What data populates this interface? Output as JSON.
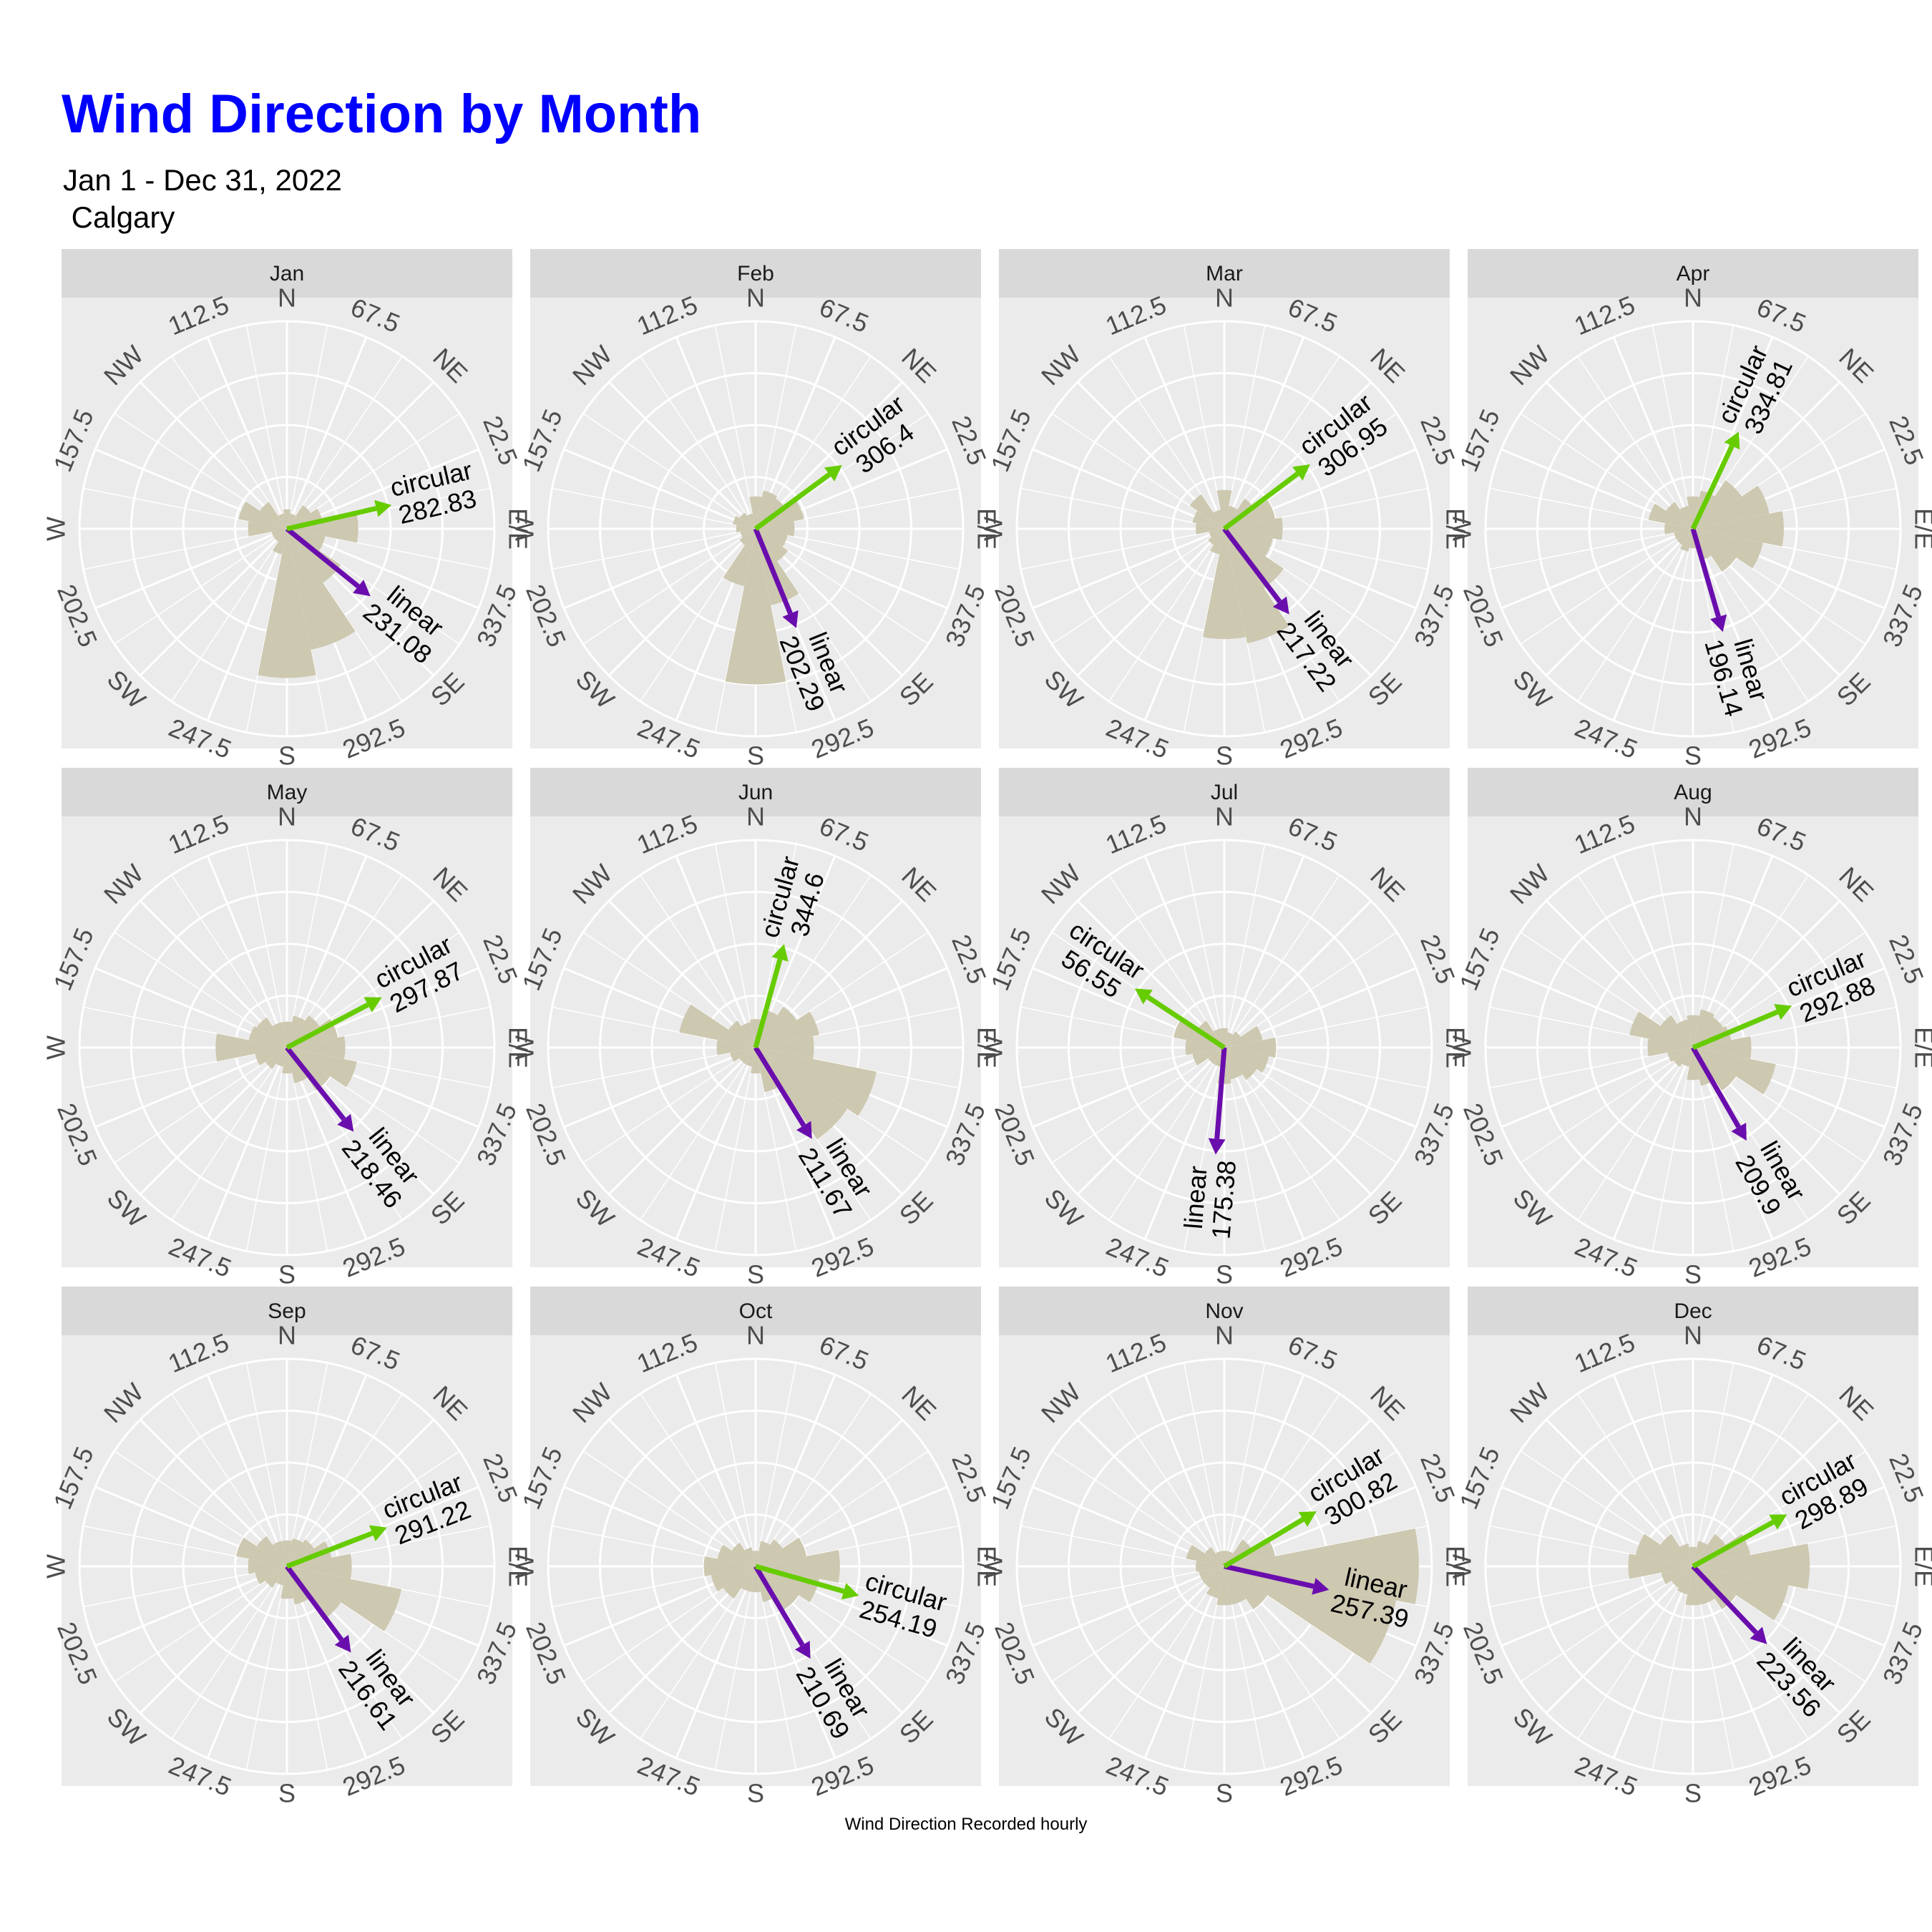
{
  "title": "Wind Direction by Month",
  "subtitle": "Jan 1 - Dec 31, 2022\n Calgary",
  "caption": "Wind Direction Recorded hourly",
  "colors": {
    "bars": "#cdc8b0",
    "linear": "#6a0dad",
    "circular": "#66cc00",
    "title": "#0000ff",
    "panel_bg": "#ebebeb",
    "strip_bg": "#d9d9d9",
    "grid": "#ffffff"
  },
  "chart_data": {
    "type": "polar-bar",
    "direction_labels": [
      "N",
      "67.5",
      "NE",
      "22.5",
      "E/E",
      "337.5",
      "SE",
      "292.5",
      "S",
      "247.5",
      "SW",
      "202.5",
      "W",
      "157.5",
      "NW",
      "112.5"
    ],
    "arrow_labels": {
      "linear": "linear",
      "circular": "circular"
    },
    "panels": [
      {
        "month": "Jan",
        "linear": "231.08",
        "circular": "282.83",
        "bars": [
          0.15,
          0.12,
          0.22,
          0.28,
          0.55,
          0.3,
          0.5,
          0.95,
          1.15,
          0.2,
          0.12,
          0.12,
          0.3,
          0.38,
          0.25,
          0.12
        ]
      },
      {
        "month": "Feb",
        "linear": "202.29",
        "circular": "306.4",
        "bars": [
          0.25,
          0.3,
          0.28,
          0.38,
          0.3,
          0.25,
          0.3,
          0.6,
          1.2,
          0.45,
          0.15,
          0.12,
          0.15,
          0.18,
          0.15,
          0.12
        ]
      },
      {
        "month": "Mar",
        "linear": "217.22",
        "circular": "306.95",
        "bars": [
          0.3,
          0.18,
          0.28,
          0.4,
          0.45,
          0.38,
          0.55,
          0.9,
          0.85,
          0.2,
          0.15,
          0.12,
          0.22,
          0.25,
          0.32,
          0.15
        ]
      },
      {
        "month": "Apr",
        "linear": "196.14",
        "circular": "334.81",
        "bars": [
          0.25,
          0.3,
          0.45,
          0.6,
          0.7,
          0.55,
          0.4,
          0.25,
          0.15,
          0.18,
          0.15,
          0.15,
          0.22,
          0.35,
          0.25,
          0.18
        ]
      },
      {
        "month": "May",
        "linear": "218.46",
        "circular": "297.87",
        "bars": [
          0.2,
          0.25,
          0.3,
          0.4,
          0.45,
          0.55,
          0.4,
          0.28,
          0.2,
          0.15,
          0.2,
          0.25,
          0.55,
          0.3,
          0.28,
          0.2
        ]
      },
      {
        "month": "Jun",
        "linear": "211.67",
        "circular": "344.6",
        "bars": [
          0.22,
          0.3,
          0.38,
          0.5,
          0.45,
          0.95,
          0.85,
          0.35,
          0.2,
          0.15,
          0.15,
          0.2,
          0.3,
          0.6,
          0.25,
          0.2
        ]
      },
      {
        "month": "Jul",
        "linear": "175.38",
        "circular": "56.55",
        "bars": [
          0.15,
          0.12,
          0.15,
          0.3,
          0.4,
          0.35,
          0.3,
          0.25,
          0.28,
          0.15,
          0.15,
          0.25,
          0.3,
          0.4,
          0.25,
          0.15
        ]
      },
      {
        "month": "Aug",
        "linear": "209.9",
        "circular": "292.88",
        "bars": [
          0.25,
          0.3,
          0.28,
          0.3,
          0.45,
          0.65,
          0.4,
          0.3,
          0.25,
          0.15,
          0.18,
          0.2,
          0.35,
          0.5,
          0.3,
          0.22
        ]
      },
      {
        "month": "Sep",
        "linear": "216.61",
        "circular": "291.22",
        "bars": [
          0.2,
          0.22,
          0.25,
          0.35,
          0.5,
          0.9,
          0.5,
          0.3,
          0.25,
          0.15,
          0.2,
          0.25,
          0.3,
          0.4,
          0.28,
          0.2
        ]
      },
      {
        "month": "Oct",
        "linear": "210.69",
        "circular": "254.19",
        "bars": [
          0.12,
          0.2,
          0.25,
          0.4,
          0.65,
          0.5,
          0.4,
          0.28,
          0.2,
          0.2,
          0.3,
          0.35,
          0.4,
          0.3,
          0.22,
          0.15
        ]
      },
      {
        "month": "Nov",
        "linear": "257.39",
        "circular": "300.82",
        "bars": [
          0.12,
          0.12,
          0.25,
          0.4,
          1.5,
          1.35,
          0.4,
          0.3,
          0.3,
          0.25,
          0.2,
          0.2,
          0.22,
          0.3,
          0.18,
          0.12
        ]
      },
      {
        "month": "Dec",
        "linear": "223.56",
        "circular": "298.89",
        "bars": [
          0.15,
          0.2,
          0.3,
          0.45,
          0.9,
          0.75,
          0.4,
          0.3,
          0.3,
          0.22,
          0.2,
          0.25,
          0.5,
          0.45,
          0.3,
          0.18
        ]
      }
    ]
  }
}
